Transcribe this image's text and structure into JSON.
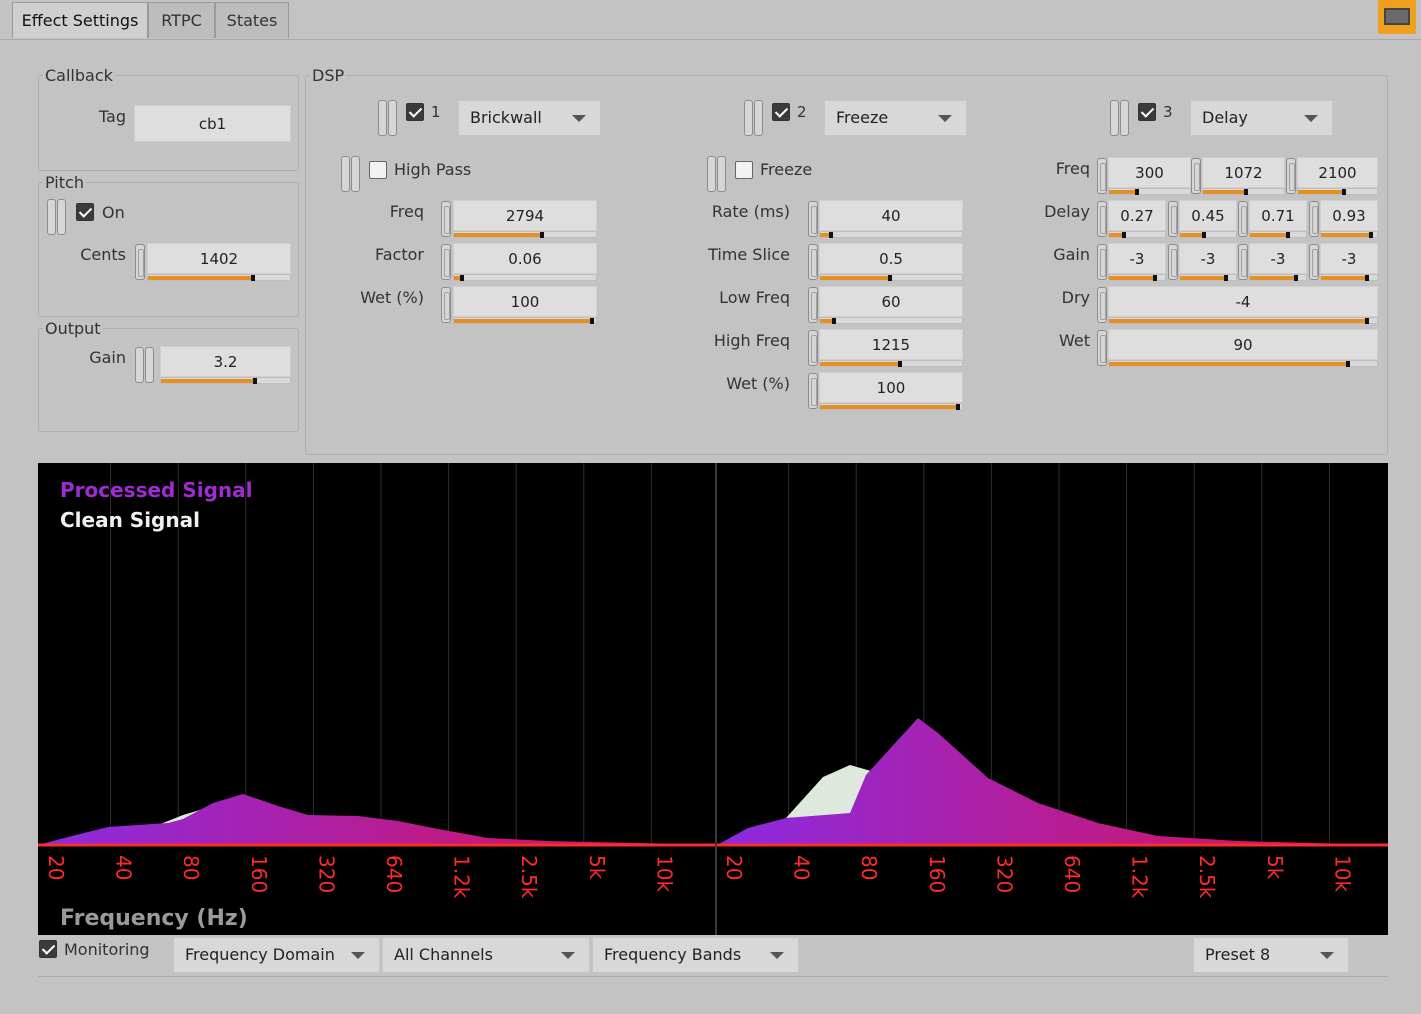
{
  "tabs": [
    "Effect Settings",
    "RTPC",
    "States"
  ],
  "callback": {
    "title": "Callback",
    "tag_label": "Tag",
    "tag_value": "cb1"
  },
  "pitch": {
    "title": "Pitch",
    "on_label": "On",
    "on_checked": true,
    "cents_label": "Cents",
    "cents_value": "1402"
  },
  "output": {
    "title": "Output",
    "gain_label": "Gain",
    "gain_value": "3.2"
  },
  "dsp": {
    "title": "DSP",
    "slot1": {
      "index": "1",
      "enabled": true,
      "effect": "Brickwall",
      "toggle_label": "High Pass",
      "toggle_checked": false,
      "params": [
        {
          "label": "Freq",
          "value": "2794"
        },
        {
          "label": "Factor",
          "value": "0.06"
        },
        {
          "label": "Wet (%)",
          "value": "100"
        }
      ]
    },
    "slot2": {
      "index": "2",
      "enabled": true,
      "effect": "Freeze",
      "toggle_label": "Freeze",
      "toggle_checked": false,
      "params": [
        {
          "label": "Rate (ms)",
          "value": "40"
        },
        {
          "label": "Time Slice",
          "value": "0.5"
        },
        {
          "label": "Low Freq",
          "value": "60"
        },
        {
          "label": "High Freq",
          "value": "1215"
        },
        {
          "label": "Wet (%)",
          "value": "100"
        }
      ]
    },
    "slot3": {
      "index": "3",
      "enabled": true,
      "effect": "Delay",
      "freq_label": "Freq",
      "freq_values": [
        "300",
        "1072",
        "2100"
      ],
      "delay_label": "Delay",
      "delay_values": [
        "0.27",
        "0.45",
        "0.71",
        "0.93"
      ],
      "gain_label": "Gain",
      "gain_values": [
        "-3",
        "-3",
        "-3",
        "-3"
      ],
      "dry_label": "Dry",
      "dry_value": "-4",
      "wet_label": "Wet",
      "wet_value": "90"
    }
  },
  "slider_levels": {
    "cents": 0.75,
    "gain": 0.74,
    "s1_freq": 0.63,
    "s1_factor": 0.06,
    "s1_wet": 1.0,
    "s2_rate": 0.08,
    "s2_slice": 0.5,
    "s2_low": 0.1,
    "s2_high": 0.57,
    "s2_wet": 1.0,
    "s3_freq": [
      0.35,
      0.55,
      0.6
    ],
    "s3_delay": [
      0.27,
      0.45,
      0.71,
      0.93
    ],
    "s3_gain": [
      0.85,
      0.85,
      0.85,
      0.85
    ],
    "s3_dry": 0.97,
    "s3_wet": 0.9
  },
  "spectrum": {
    "legend_processed": "Processed Signal",
    "legend_clean": "Clean Signal",
    "axis_title": "Frequency (Hz)",
    "ticks": [
      "20",
      "40",
      "80",
      "160",
      "320",
      "640",
      "1.2k",
      "2.5k",
      "5k",
      "10k"
    ],
    "colors": {
      "processed_start": "#8a2be2",
      "processed_end": "#e0104a",
      "clean": "#dfe8dc",
      "tick": "#ff2a2a",
      "legend_processed": "#a02bd0"
    }
  },
  "bottom": {
    "monitoring_label": "Monitoring",
    "monitoring_checked": true,
    "domain": "Frequency Domain",
    "channels": "All Channels",
    "bands": "Frequency Bands",
    "preset": "Preset 8"
  }
}
